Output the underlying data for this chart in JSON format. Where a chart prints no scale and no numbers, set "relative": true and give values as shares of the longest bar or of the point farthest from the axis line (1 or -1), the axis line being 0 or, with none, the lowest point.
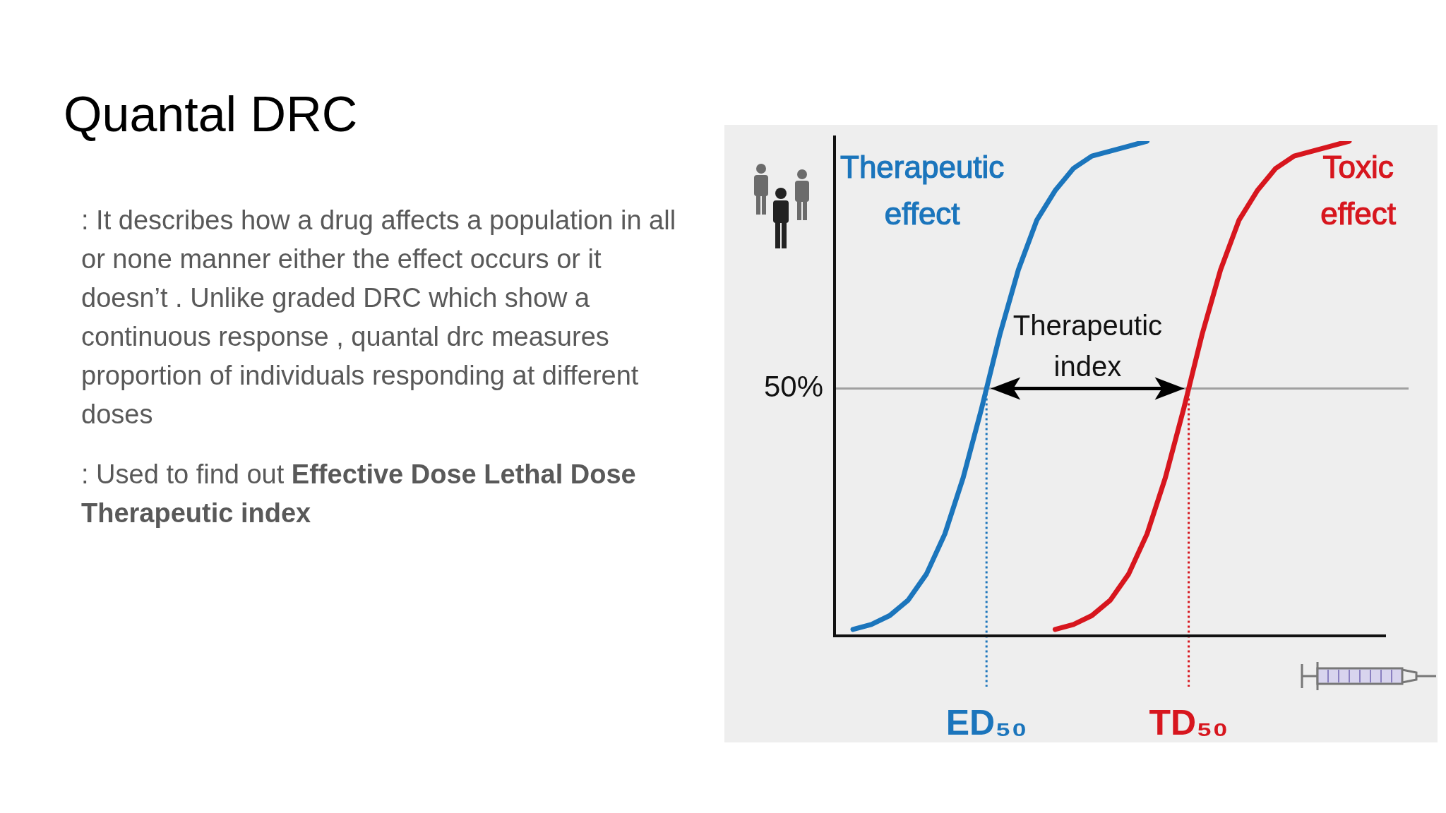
{
  "chart_data": {
    "type": "line",
    "title": "Quantal DRC",
    "relative": true,
    "legend": false,
    "categories": [
      null,
      null,
      null,
      null,
      null,
      null,
      null,
      null,
      null,
      null,
      null,
      null,
      null,
      null,
      null,
      null,
      null,
      null,
      null,
      null,
      null,
      null,
      null,
      null,
      null,
      null,
      null,
      null,
      null,
      null,
      null
    ],
    "series": [
      {
        "name": "Therapeutic effect",
        "color": "#1b75bc",
        "values": [
          null,
          0.013,
          0.023,
          0.041,
          0.072,
          0.125,
          0.206,
          0.32,
          0.46,
          0.61,
          0.74,
          0.84,
          0.9,
          0.945,
          0.97,
          0.98,
          0.99,
          1,
          null,
          null,
          null,
          null,
          null,
          null,
          null,
          null,
          null,
          null,
          null,
          null,
          null
        ]
      },
      {
        "name": "Toxic effect",
        "color": "#d7161e",
        "values": [
          null,
          null,
          null,
          null,
          null,
          null,
          null,
          null,
          null,
          null,
          null,
          null,
          0.013,
          0.023,
          0.041,
          0.072,
          0.125,
          0.206,
          0.32,
          0.46,
          0.61,
          0.74,
          0.84,
          0.9,
          0.945,
          0.97,
          0.98,
          0.99,
          1,
          null,
          null
        ]
      }
    ],
    "ref_lines": [
      {
        "axis": "y",
        "value": 0.5,
        "label": "50%",
        "color": "#a0a0a0"
      }
    ],
    "annotations": [
      ": It describes how a drug affects a population in all or none manner either the effect occurs or it doesn’t . Unlike graded DRC which show a continuous response , quantal drc measures proportion of individuals responding at different doses",
      ": Used to find out ",
      "Effective Dose Lethal Dose Therapeutic index",
      "Therapeutic index",
      "ED₅₀",
      "TD₅₀"
    ]
  }
}
